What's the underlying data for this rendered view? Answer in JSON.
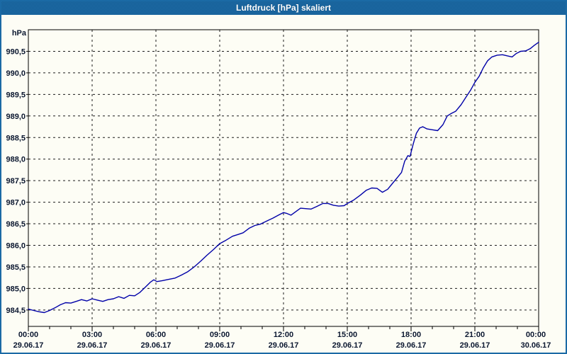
{
  "window": {
    "title": "Luftdruck [hPa] skaliert"
  },
  "colors": {
    "accent": "#1b6aa5",
    "background": "#fdfdf5",
    "plot_border": "#000000",
    "grid": "#1c1c1c",
    "tick_text": "#0b1730",
    "curve": "#0000a8",
    "title_text": "#ffffff"
  },
  "chart_data": {
    "type": "line",
    "title": "Luftdruck [hPa] skaliert",
    "ylabel": "hPa",
    "xlabel": "",
    "legend": "none",
    "grid": "dashed",
    "xlim_hours": [
      0,
      24
    ],
    "ylim": [
      984.12,
      991.0
    ],
    "y_ticks": [
      {
        "value": 984.5,
        "label": "984,5"
      },
      {
        "value": 985.0,
        "label": "985,0"
      },
      {
        "value": 985.5,
        "label": "985,5"
      },
      {
        "value": 986.0,
        "label": "986,0"
      },
      {
        "value": 986.5,
        "label": "986,5"
      },
      {
        "value": 987.0,
        "label": "987,0"
      },
      {
        "value": 987.5,
        "label": "987,5"
      },
      {
        "value": 988.0,
        "label": "988,0"
      },
      {
        "value": 988.5,
        "label": "988,5"
      },
      {
        "value": 989.0,
        "label": "989,0"
      },
      {
        "value": 989.5,
        "label": "989,5"
      },
      {
        "value": 990.0,
        "label": "990,0"
      },
      {
        "value": 990.5,
        "label": "990,5"
      }
    ],
    "x_major_ticks": [
      {
        "hour": 0,
        "time": "00:00",
        "date": "29.06.17"
      },
      {
        "hour": 3,
        "time": "03:00",
        "date": "29.06.17"
      },
      {
        "hour": 6,
        "time": "06:00",
        "date": "29.06.17"
      },
      {
        "hour": 9,
        "time": "09:00",
        "date": "29.06.17"
      },
      {
        "hour": 12,
        "time": "12:00",
        "date": "29.06.17"
      },
      {
        "hour": 15,
        "time": "15:00",
        "date": "29.06.17"
      },
      {
        "hour": 18,
        "time": "18:00",
        "date": "29.06.17"
      },
      {
        "hour": 21,
        "time": "21:00",
        "date": "29.06.17"
      },
      {
        "hour": 24,
        "time": "00:00",
        "date": "30.06.17"
      }
    ],
    "x_minor_tick_every_hours": 1,
    "series": [
      {
        "name": "Luftdruck",
        "unit": "hPa",
        "color": "#0000a8",
        "points": [
          [
            0.0,
            984.52
          ],
          [
            0.25,
            984.49
          ],
          [
            0.5,
            984.46
          ],
          [
            0.75,
            984.44
          ],
          [
            1.0,
            984.49
          ],
          [
            1.25,
            984.55
          ],
          [
            1.5,
            984.62
          ],
          [
            1.75,
            984.67
          ],
          [
            2.0,
            984.66
          ],
          [
            2.25,
            984.7
          ],
          [
            2.5,
            984.74
          ],
          [
            2.75,
            984.71
          ],
          [
            3.0,
            984.76
          ],
          [
            3.25,
            984.73
          ],
          [
            3.5,
            984.7
          ],
          [
            3.75,
            984.74
          ],
          [
            4.0,
            984.76
          ],
          [
            4.25,
            984.81
          ],
          [
            4.5,
            984.77
          ],
          [
            4.75,
            984.84
          ],
          [
            5.0,
            984.83
          ],
          [
            5.25,
            984.91
          ],
          [
            5.5,
            985.03
          ],
          [
            5.75,
            985.15
          ],
          [
            5.9,
            985.2
          ],
          [
            6.05,
            985.16
          ],
          [
            6.3,
            985.18
          ],
          [
            6.6,
            985.21
          ],
          [
            6.9,
            985.24
          ],
          [
            7.2,
            985.31
          ],
          [
            7.5,
            985.39
          ],
          [
            7.8,
            985.5
          ],
          [
            8.1,
            985.63
          ],
          [
            8.4,
            985.77
          ],
          [
            8.7,
            985.9
          ],
          [
            9.0,
            986.04
          ],
          [
            9.3,
            986.12
          ],
          [
            9.6,
            986.21
          ],
          [
            9.85,
            986.25
          ],
          [
            10.1,
            986.29
          ],
          [
            10.4,
            986.4
          ],
          [
            10.65,
            986.46
          ],
          [
            10.9,
            986.49
          ],
          [
            11.2,
            986.56
          ],
          [
            11.5,
            986.63
          ],
          [
            11.8,
            986.71
          ],
          [
            12.0,
            986.76
          ],
          [
            12.15,
            986.74
          ],
          [
            12.35,
            986.7
          ],
          [
            12.6,
            986.79
          ],
          [
            12.8,
            986.86
          ],
          [
            13.05,
            986.85
          ],
          [
            13.3,
            986.84
          ],
          [
            13.6,
            986.91
          ],
          [
            13.85,
            986.97
          ],
          [
            14.1,
            986.97
          ],
          [
            14.35,
            986.93
          ],
          [
            14.6,
            986.91
          ],
          [
            14.85,
            986.92
          ],
          [
            15.0,
            986.97
          ],
          [
            15.3,
            987.05
          ],
          [
            15.6,
            987.16
          ],
          [
            15.9,
            987.28
          ],
          [
            16.15,
            987.33
          ],
          [
            16.4,
            987.32
          ],
          [
            16.65,
            987.23
          ],
          [
            16.9,
            987.3
          ],
          [
            17.1,
            987.42
          ],
          [
            17.35,
            987.57
          ],
          [
            17.55,
            987.69
          ],
          [
            17.7,
            987.95
          ],
          [
            17.85,
            988.08
          ],
          [
            17.95,
            988.06
          ],
          [
            18.1,
            988.35
          ],
          [
            18.25,
            988.6
          ],
          [
            18.4,
            988.72
          ],
          [
            18.55,
            988.75
          ],
          [
            18.75,
            988.7
          ],
          [
            19.0,
            988.68
          ],
          [
            19.25,
            988.66
          ],
          [
            19.5,
            988.8
          ],
          [
            19.7,
            989.0
          ],
          [
            19.9,
            989.06
          ],
          [
            20.1,
            989.11
          ],
          [
            20.35,
            989.26
          ],
          [
            20.6,
            989.45
          ],
          [
            20.8,
            989.6
          ],
          [
            21.0,
            989.78
          ],
          [
            21.2,
            989.92
          ],
          [
            21.4,
            990.12
          ],
          [
            21.6,
            990.28
          ],
          [
            21.8,
            990.37
          ],
          [
            22.05,
            990.41
          ],
          [
            22.3,
            990.42
          ],
          [
            22.55,
            990.39
          ],
          [
            22.75,
            990.37
          ],
          [
            22.95,
            990.45
          ],
          [
            23.15,
            990.5
          ],
          [
            23.4,
            990.51
          ],
          [
            23.6,
            990.56
          ],
          [
            23.8,
            990.64
          ],
          [
            24.0,
            990.71
          ]
        ]
      }
    ]
  }
}
